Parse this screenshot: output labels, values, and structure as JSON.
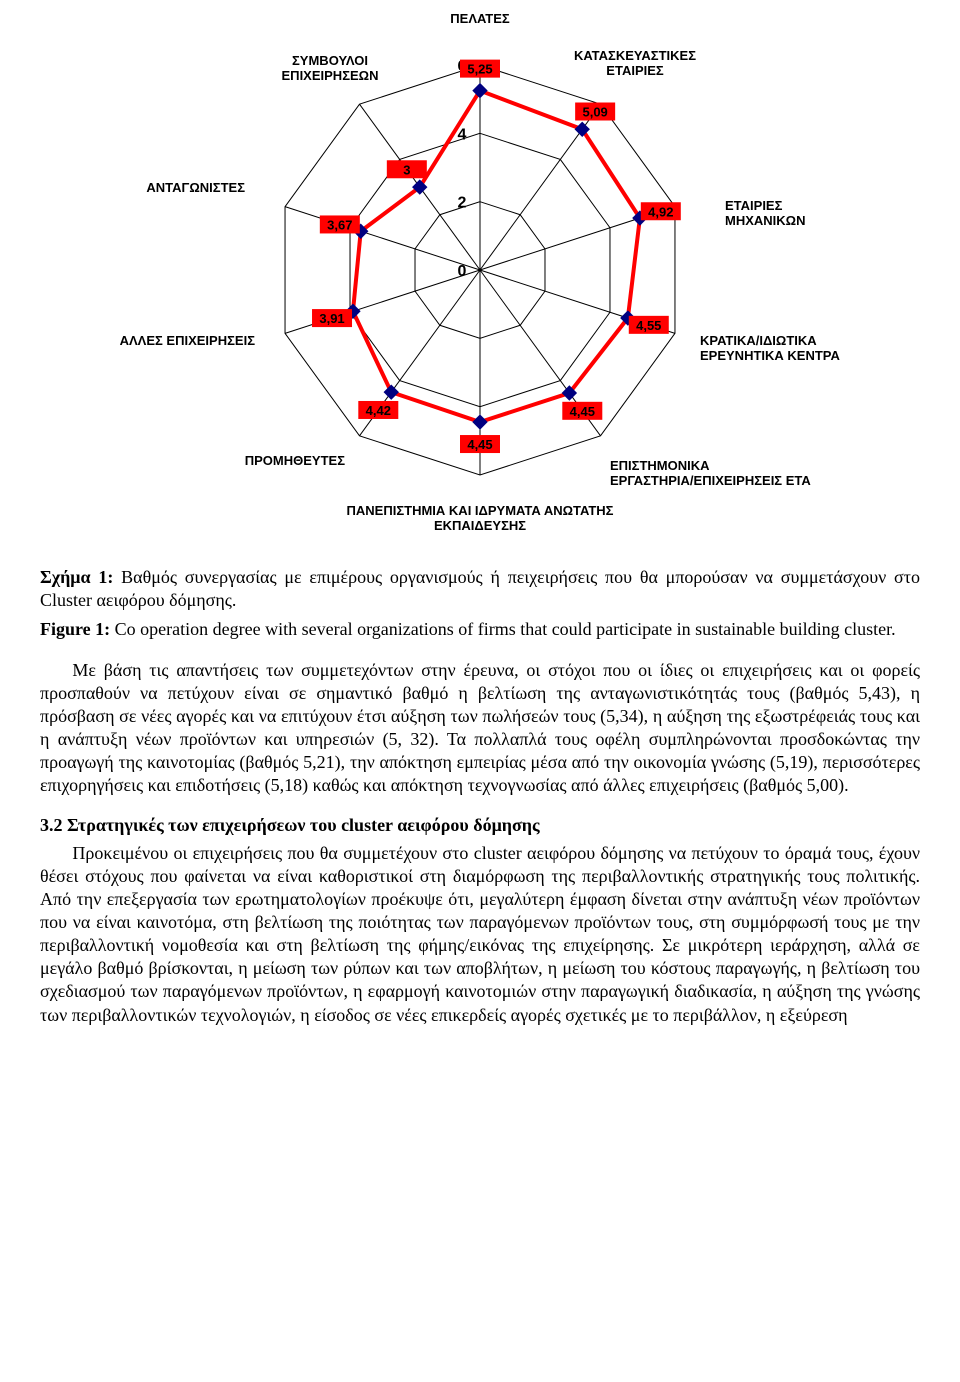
{
  "chart": {
    "type": "radar",
    "max": 6,
    "ticks": [
      0,
      2,
      4,
      6
    ],
    "grid_color": "#000000",
    "line_color": "#ff0000",
    "line_width": 4,
    "marker_color": "#000080",
    "marker_size": 7,
    "value_box_color": "#ff0000",
    "background_color": "#ffffff",
    "axes": [
      {
        "label": "ΠΕΛΑΤΕΣ",
        "value": 5.25,
        "value_text": "5,25"
      },
      {
        "label": "ΚΑΤΑΣΚΕΥΑΣΤΙΚΕΣ ΕΤΑΙΡΙΕΣ",
        "value": 5.09,
        "value_text": "5,09"
      },
      {
        "label": "ΕΤΑΙΡΙΕΣ ΜΗΧΑΝΙΚΩΝ",
        "value": 4.92,
        "value_text": "4,92"
      },
      {
        "label": "ΚΡΑΤΙΚΑ/ΙΔΙΩΤΙΚΑ ΕΡΕΥΝΗΤΙΚΑ ΚΕΝΤΡΑ",
        "value": 4.55,
        "value_text": "4,55"
      },
      {
        "label": "ΕΠΙΣΤΗΜΟΝΙΚΑ ΕΡΓΑΣΤΗΡΙΑ/ΕΠΙΧΕΙΡΗΣΕΙΣ ΕΤΑ",
        "value": 4.45,
        "value_text": "4,45"
      },
      {
        "label": "ΠΑΝΕΠΙΣΤΗΜΙΑ ΚΑΙ ΙΔΡΥΜΑΤΑ ΑΝΩΤΑΤΗΣ ΕΚΠΑΙΔΕΥΣΗΣ",
        "value": 4.45,
        "value_text": "4,45"
      },
      {
        "label": "ΠΡΟΜΗΘΕΥΤΕΣ",
        "value": 4.42,
        "value_text": "4,42"
      },
      {
        "label": "ΑΛΛΕΣ ΕΠΙΧΕΙΡΗΣΕΙΣ",
        "value": 3.91,
        "value_text": "3,91"
      },
      {
        "label": "ΑΝΤΑΓΩΝΙΣΤΕΣ",
        "value": 3.67,
        "value_text": "3,67"
      },
      {
        "label": "ΣΥΜΒΟΥΛΟΙ ΕΠΙΧΕΙΡΗΣΕΩΝ",
        "value": 3.0,
        "value_text": "3"
      }
    ]
  },
  "caption_gr": "Σχήμα 1: Βαθμός συνεργασίας με επιμέρους οργανισμούς ή πειχειρήσεις που θα μπορούσαν να συμμετάσχουν στο Cluster αειφόρου δόμησης.",
  "caption_gr_bold": "Σχήμα 1:",
  "caption_gr_rest": " Βαθμός συνεργασίας με επιμέρους οργανισμούς ή πειχειρήσεις που θα μπορούσαν να συμμετάσχουν στο Cluster αειφόρου δόμησης.",
  "caption_en_bold": "Figure 1:",
  "caption_en_rest": " Co operation degree with several organizations of firms that could participate in sustainable building cluster.",
  "para1": "Με βάση τις απαντήσεις των συμμετεχόντων στην έρευνα, οι στόχοι που οι ίδιες οι επιχειρήσεις και οι φορείς προσπαθούν να πετύχουν είναι σε σημαντικό βαθμό η βελτίωση της ανταγωνιστικότητάς τους (βαθμός 5,43), η πρόσβαση σε νέες αγορές και να επιτύχουν έτσι αύξηση των πωλήσεών τους (5,34), η αύξηση της εξωστρέφειάς τους και η ανάπτυξη νέων προϊόντων και υπηρεσιών (5, 32). Τα πολλαπλά τους οφέλη συμπληρώνονται προσδοκώντας την προαγωγή της καινοτομίας (βαθμός 5,21), την απόκτηση εμπειρίας μέσα από την οικονομία γνώσης (5,19), περισσότερες επιχορηγήσεις και επιδοτήσεις (5,18) καθώς και απόκτηση τεχνογνωσίας από άλλες επιχειρήσεις (βαθμός 5,00).",
  "heading32": "3.2 Στρατηγικές των επιχειρήσεων του cluster αειφόρου δόμησης",
  "para2": "Προκειμένου οι επιχειρήσεις που θα συμμετέχουν στο cluster αειφόρου δόμησης να πετύχουν το όραμά τους, έχουν θέσει στόχους που φαίνεται να είναι καθοριστικοί στη διαμόρφωση της περιβαλλοντικής στρατηγικής τους πολιτικής. Από την επεξεργασία των ερωτηματολογίων προέκυψε ότι, μεγαλύτερη έμφαση δίνεται στην ανάπτυξη νέων προϊόντων που να είναι καινοτόμα, στη βελτίωση της ποιότητας των παραγόμενων προϊόντων τους, στη συμμόρφωσή τους με την περιβαλλοντική νομοθεσία και στη βελτίωση της φήμης/εικόνας της επιχείρησης. Σε μικρότερη ιεράρχηση, αλλά σε μεγάλο βαθμό βρίσκονται, η μείωση των ρύπων και των αποβλήτων, η μείωση του κόστους παραγωγής, η βελτίωση του σχεδιασμού των παραγόμενων προϊόντων, η εφαρμογή καινοτομιών στην παραγωγική διαδικασία, η αύξηση της γνώσης των περιβαλλοντικών τεχνολογιών, η είσοδος σε νέες επικερδείς αγορές σχετικές με το περιβάλλον, η εξεύρεση"
}
